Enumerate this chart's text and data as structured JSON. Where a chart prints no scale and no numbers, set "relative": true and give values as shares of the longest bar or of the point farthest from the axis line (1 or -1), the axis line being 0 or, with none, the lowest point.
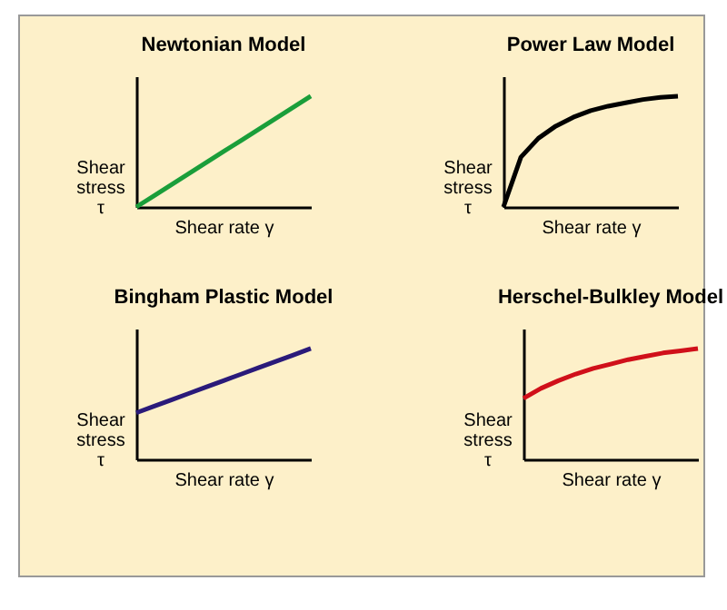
{
  "chart_data": [
    {
      "type": "line",
      "title": "Newtonian Model",
      "xlabel": "Shear rate γ",
      "ylabel": "Shear\nstress\nτ",
      "relative": true,
      "categories": [
        null,
        null,
        null,
        null,
        null,
        null,
        null,
        null,
        null,
        null,
        null
      ],
      "series": [
        {
          "color": "#1a9e3a",
          "values": [
            0,
            0.1,
            0.2,
            0.3,
            0.4,
            0.5,
            0.6,
            0.7,
            0.8,
            0.9,
            1
          ]
        }
      ]
    },
    {
      "type": "line",
      "title": "Power Law Model",
      "xlabel": "Shear rate γ",
      "ylabel": "Shear\nstress\nτ",
      "relative": true,
      "categories": [
        null,
        null,
        null,
        null,
        null,
        null,
        null,
        null,
        null,
        null,
        null
      ],
      "series": [
        {
          "color": "#000000",
          "values": [
            0,
            0.45,
            0.62,
            0.73,
            0.81,
            0.87,
            0.91,
            0.94,
            0.97,
            0.99,
            1
          ]
        }
      ]
    },
    {
      "type": "line",
      "title": "Bingham Plastic Model",
      "xlabel": "Shear rate γ",
      "ylabel": "Shear\nstress\nτ",
      "relative": true,
      "categories": [
        null,
        null,
        null,
        null,
        null,
        null,
        null,
        null,
        null,
        null,
        null
      ],
      "series": [
        {
          "color": "#2a1a7a",
          "values": [
            0.42,
            0.478,
            0.536,
            0.594,
            0.652,
            0.71,
            0.768,
            0.826,
            0.884,
            0.942,
            1
          ]
        }
      ]
    },
    {
      "type": "line",
      "title": "Herschel-Bulkley Model",
      "xlabel": "Shear rate γ",
      "ylabel": "Shear\nstress\nτ",
      "relative": true,
      "categories": [
        null,
        null,
        null,
        null,
        null,
        null,
        null,
        null,
        null,
        null,
        null
      ],
      "series": [
        {
          "color": "#d0101a",
          "values": [
            0.55,
            0.64,
            0.71,
            0.77,
            0.82,
            0.86,
            0.9,
            0.93,
            0.96,
            0.98,
            1
          ]
        }
      ]
    }
  ]
}
